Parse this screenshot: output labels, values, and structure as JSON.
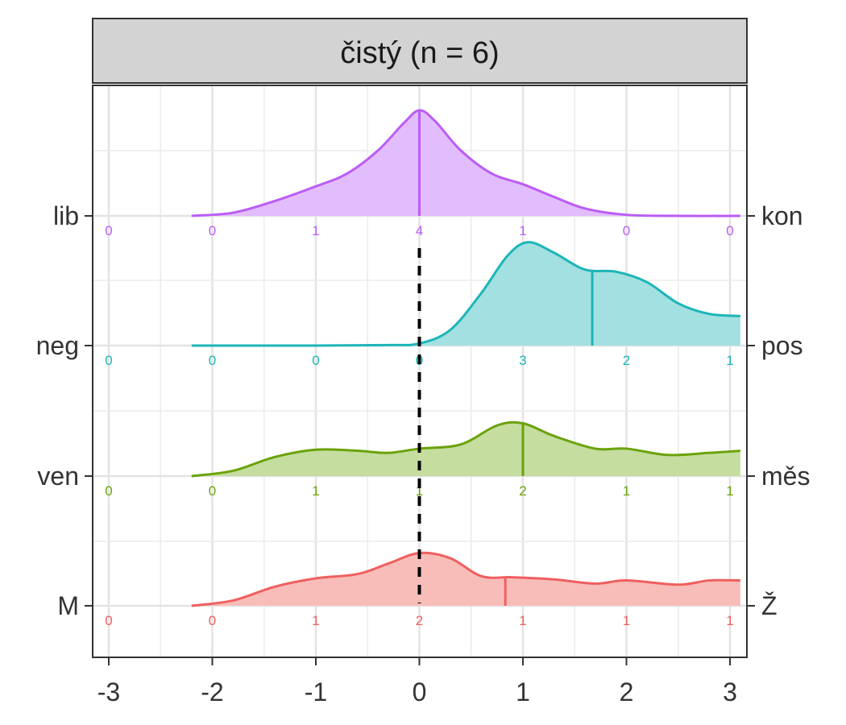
{
  "chart_data": {
    "type": "ridgeline",
    "facet_title": "čistý (n = 6)",
    "xlim": [
      -3,
      3
    ],
    "x_ticks": [
      "-3",
      "-2",
      "-1",
      "0",
      "1",
      "2",
      "3"
    ],
    "reference_line_x": 0,
    "grid": true,
    "count_positions": [
      -3,
      -2,
      -1,
      0,
      1,
      2,
      3
    ],
    "series": [
      {
        "left_label": "lib",
        "right_label": "kon",
        "color": "#bb5cf5",
        "fill": "#e2bdfd",
        "median": 0,
        "counts": [
          "0",
          "0",
          "1",
          "4",
          "1",
          "0",
          "0"
        ],
        "density": [
          [
            -2.2,
            0.0
          ],
          [
            -1.8,
            0.03
          ],
          [
            -1.4,
            0.14
          ],
          [
            -1.0,
            0.28
          ],
          [
            -0.7,
            0.4
          ],
          [
            -0.4,
            0.62
          ],
          [
            -0.15,
            0.88
          ],
          [
            0.0,
            1.0
          ],
          [
            0.15,
            0.9
          ],
          [
            0.4,
            0.62
          ],
          [
            0.7,
            0.4
          ],
          [
            1.0,
            0.3
          ],
          [
            1.3,
            0.18
          ],
          [
            1.6,
            0.07
          ],
          [
            2.0,
            0.01
          ],
          [
            2.5,
            0.0
          ],
          [
            3.1,
            0.0
          ]
        ]
      },
      {
        "left_label": "neg",
        "right_label": "pos",
        "color": "#1cb5b8",
        "fill": "#a2e0e1",
        "median": 1.67,
        "counts": [
          "0",
          "0",
          "0",
          "0",
          "3",
          "2",
          "1"
        ],
        "density": [
          [
            -2.2,
            0.0
          ],
          [
            -1.0,
            0.0
          ],
          [
            -0.3,
            0.005
          ],
          [
            0.0,
            0.02
          ],
          [
            0.3,
            0.15
          ],
          [
            0.6,
            0.5
          ],
          [
            0.85,
            0.85
          ],
          [
            1.05,
            0.98
          ],
          [
            1.3,
            0.88
          ],
          [
            1.6,
            0.72
          ],
          [
            1.9,
            0.7
          ],
          [
            2.2,
            0.6
          ],
          [
            2.5,
            0.4
          ],
          [
            2.8,
            0.3
          ],
          [
            3.1,
            0.28
          ]
        ]
      },
      {
        "left_label": "ven",
        "right_label": "měs",
        "color": "#6aa20a",
        "fill": "#c5dd9f",
        "median": 1,
        "counts": [
          "0",
          "0",
          "1",
          "1",
          "2",
          "1",
          "1"
        ],
        "density": [
          [
            -2.2,
            0.0
          ],
          [
            -1.8,
            0.05
          ],
          [
            -1.4,
            0.18
          ],
          [
            -1.0,
            0.25
          ],
          [
            -0.6,
            0.24
          ],
          [
            -0.3,
            0.22
          ],
          [
            0.0,
            0.26
          ],
          [
            0.4,
            0.3
          ],
          [
            0.75,
            0.48
          ],
          [
            1.0,
            0.5
          ],
          [
            1.3,
            0.38
          ],
          [
            1.7,
            0.26
          ],
          [
            2.0,
            0.26
          ],
          [
            2.4,
            0.2
          ],
          [
            2.8,
            0.22
          ],
          [
            3.1,
            0.24
          ]
        ]
      },
      {
        "left_label": "M",
        "right_label": "Ž",
        "color": "#ef5f5f",
        "fill": "#f8bdb9",
        "median": 0.83,
        "counts": [
          "0",
          "0",
          "1",
          "2",
          "1",
          "1",
          "1"
        ],
        "density": [
          [
            -2.2,
            0.0
          ],
          [
            -1.8,
            0.05
          ],
          [
            -1.4,
            0.18
          ],
          [
            -1.0,
            0.26
          ],
          [
            -0.6,
            0.3
          ],
          [
            -0.3,
            0.4
          ],
          [
            0.0,
            0.5
          ],
          [
            0.3,
            0.45
          ],
          [
            0.6,
            0.28
          ],
          [
            0.9,
            0.27
          ],
          [
            1.3,
            0.25
          ],
          [
            1.7,
            0.21
          ],
          [
            2.0,
            0.24
          ],
          [
            2.5,
            0.2
          ],
          [
            2.8,
            0.24
          ],
          [
            3.1,
            0.24
          ]
        ]
      }
    ]
  }
}
